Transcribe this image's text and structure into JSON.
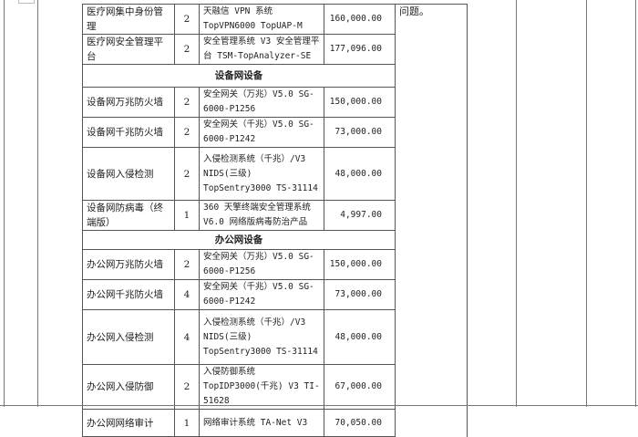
{
  "note": "问题。",
  "rows": [
    {
      "name": "医疗网集中身份管理",
      "qty": "2",
      "model": "天融信 VPN 系统 TopVPN6000 TopUAP-M",
      "price": "160,000.00"
    },
    {
      "name": "医疗网安全管理平台",
      "qty": "2",
      "model": "安全管理系统 V3 安全管理平台 TSM-TopAnalyzer-SE",
      "price": "177,096.00"
    },
    {
      "section": "设备网设备"
    },
    {
      "name": "设备网万兆防火墙",
      "qty": "2",
      "model": "安全网关（万兆）V5.0 SG-6000-P1256",
      "price": "150,000.00"
    },
    {
      "name": "设备网千兆防火墙",
      "qty": "2",
      "model": "安全网关（千兆）V5.0 SG-6000-P1242",
      "price": "73,000.00"
    },
    {
      "name": "设备网入侵检测",
      "qty": "2",
      "model": "入侵检测系统（千兆）/V3 NIDS(三级) TopSentry3000 TS-31114",
      "price": "48,000.00"
    },
    {
      "name": "设备网防病毒（终端版）",
      "qty": "1",
      "model": "360 天擎终端安全管理系统 V6.0 网络版病毒防治产品",
      "price": "4,997.00"
    },
    {
      "section": "办公网设备"
    },
    {
      "name": "办公网万兆防火墙",
      "qty": "2",
      "model": "安全网关（万兆）V5.0 SG-6000-P1256",
      "price": "150,000.00"
    },
    {
      "name": "办公网千兆防火墙",
      "qty": "4",
      "model": "安全网关（千兆）V5.0 SG-6000-P1242",
      "price": "73,000.00"
    },
    {
      "name": "办公网入侵检测",
      "qty": "4",
      "model": "入侵检测系统（千兆）/V3 NIDS(三级) TopSentry3000 TS-31114",
      "price": "48,000.00"
    },
    {
      "name": "办公网入侵防御",
      "qty": "2",
      "model": "入侵防御系统 TopIDP3000(千兆) V3 TI-51628",
      "price": "67,000.00"
    },
    {
      "name": "办公网网络审计",
      "qty": "1",
      "model": "网络审计系统 TA-Net V3",
      "price": "70,050.00"
    }
  ]
}
